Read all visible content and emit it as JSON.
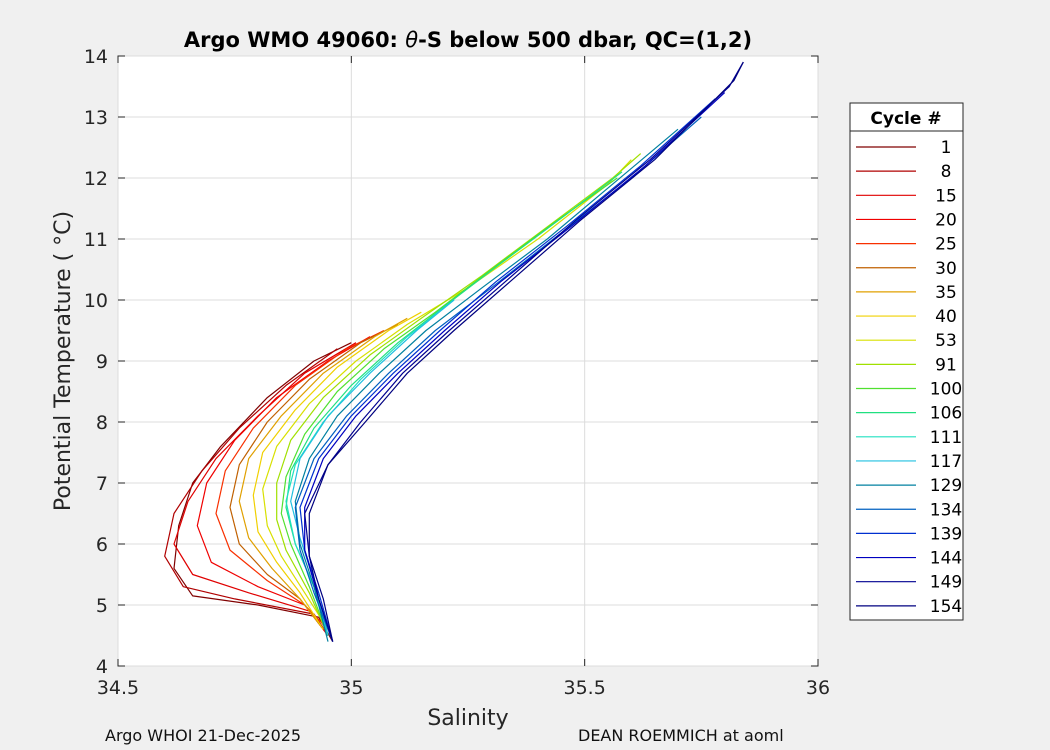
{
  "chart_data": {
    "type": "line",
    "title_prefix": "Argo WMO 49060: ",
    "title_symbol": "θ",
    "title_suffix": "-S below 500 dbar,  QC=(1,2)",
    "xlabel": "Salinity",
    "ylabel": "Potential Temperature ( °C)",
    "xlim": [
      34.5,
      36
    ],
    "ylim": [
      4,
      14
    ],
    "xticks": [
      34.5,
      35,
      35.5,
      36
    ],
    "xtick_labels": [
      "34.5",
      "35",
      "35.5",
      "36"
    ],
    "yticks": [
      4,
      5,
      6,
      7,
      8,
      9,
      10,
      11,
      12,
      13,
      14
    ],
    "ytick_labels": [
      "4",
      "5",
      "6",
      "7",
      "8",
      "9",
      "10",
      "11",
      "12",
      "13",
      "14"
    ],
    "grid": true,
    "legend": {
      "title": "Cycle #",
      "placement": "right-outside",
      "entries": [
        {
          "label": "1",
          "color": "#800000"
        },
        {
          "label": "8",
          "color": "#b00000"
        },
        {
          "label": "15",
          "color": "#e00000"
        },
        {
          "label": "20",
          "color": "#f00000"
        },
        {
          "label": "25",
          "color": "#f83000"
        },
        {
          "label": "30",
          "color": "#c06000"
        },
        {
          "label": "35",
          "color": "#e0a000"
        },
        {
          "label": "40",
          "color": "#f0d000"
        },
        {
          "label": "53",
          "color": "#d8e000"
        },
        {
          "label": "91",
          "color": "#a0e000"
        },
        {
          "label": "100",
          "color": "#50e030"
        },
        {
          "label": "106",
          "color": "#20e080"
        },
        {
          "label": "111",
          "color": "#20e0c0"
        },
        {
          "label": "117",
          "color": "#20c0e0"
        },
        {
          "label": "129",
          "color": "#0080a0"
        },
        {
          "label": "134",
          "color": "#0060c0"
        },
        {
          "label": "139",
          "color": "#0030d0"
        },
        {
          "label": "144",
          "color": "#0000c0"
        },
        {
          "label": "149",
          "color": "#000090"
        },
        {
          "label": "154",
          "color": "#000080"
        }
      ]
    },
    "series": [
      {
        "name": "1",
        "color": "#800000",
        "points": [
          [
            34.96,
            4.4
          ],
          [
            34.93,
            4.8
          ],
          [
            34.8,
            5.0
          ],
          [
            34.66,
            5.15
          ],
          [
            34.62,
            5.6
          ],
          [
            34.63,
            6.3
          ],
          [
            34.66,
            7.0
          ],
          [
            34.72,
            7.6
          ],
          [
            34.82,
            8.4
          ],
          [
            34.92,
            9.0
          ],
          [
            35.0,
            9.3
          ]
        ]
      },
      {
        "name": "8",
        "color": "#b00000",
        "points": [
          [
            34.95,
            4.5
          ],
          [
            34.92,
            4.85
          ],
          [
            34.75,
            5.1
          ],
          [
            34.64,
            5.3
          ],
          [
            34.6,
            5.8
          ],
          [
            34.62,
            6.5
          ],
          [
            34.68,
            7.2
          ],
          [
            34.76,
            7.9
          ],
          [
            34.86,
            8.6
          ],
          [
            34.97,
            9.2
          ]
        ]
      },
      {
        "name": "15",
        "color": "#e00000",
        "points": [
          [
            34.95,
            4.5
          ],
          [
            34.91,
            4.9
          ],
          [
            34.78,
            5.2
          ],
          [
            34.66,
            5.5
          ],
          [
            34.62,
            6.0
          ],
          [
            34.65,
            6.7
          ],
          [
            34.71,
            7.4
          ],
          [
            34.8,
            8.1
          ],
          [
            34.9,
            8.8
          ],
          [
            35.01,
            9.3
          ]
        ]
      },
      {
        "name": "20",
        "color": "#f00000",
        "points": [
          [
            34.95,
            4.5
          ],
          [
            34.9,
            5.0
          ],
          [
            34.8,
            5.3
          ],
          [
            34.7,
            5.7
          ],
          [
            34.67,
            6.3
          ],
          [
            34.69,
            7.0
          ],
          [
            34.75,
            7.7
          ],
          [
            34.84,
            8.4
          ],
          [
            34.95,
            9.0
          ],
          [
            35.04,
            9.4
          ]
        ]
      },
      {
        "name": "25",
        "color": "#f83000",
        "points": [
          [
            34.95,
            4.6
          ],
          [
            34.9,
            5.0
          ],
          [
            34.82,
            5.4
          ],
          [
            34.74,
            5.9
          ],
          [
            34.71,
            6.5
          ],
          [
            34.73,
            7.2
          ],
          [
            34.79,
            7.9
          ],
          [
            34.88,
            8.6
          ],
          [
            34.99,
            9.2
          ],
          [
            35.07,
            9.5
          ]
        ]
      },
      {
        "name": "30",
        "color": "#c06000",
        "points": [
          [
            34.94,
            4.6
          ],
          [
            34.89,
            5.1
          ],
          [
            34.82,
            5.5
          ],
          [
            34.76,
            6.0
          ],
          [
            34.74,
            6.6
          ],
          [
            34.76,
            7.3
          ],
          [
            34.82,
            8.0
          ],
          [
            34.91,
            8.7
          ],
          [
            35.02,
            9.3
          ],
          [
            35.1,
            9.6
          ]
        ]
      },
      {
        "name": "35",
        "color": "#e0a000",
        "points": [
          [
            34.94,
            4.6
          ],
          [
            34.89,
            5.1
          ],
          [
            34.83,
            5.6
          ],
          [
            34.78,
            6.1
          ],
          [
            34.76,
            6.7
          ],
          [
            34.78,
            7.4
          ],
          [
            34.85,
            8.1
          ],
          [
            34.94,
            8.8
          ],
          [
            35.05,
            9.4
          ],
          [
            35.12,
            9.7
          ]
        ]
      },
      {
        "name": "40",
        "color": "#f0d000",
        "points": [
          [
            34.94,
            4.6
          ],
          [
            34.89,
            5.2
          ],
          [
            34.84,
            5.7
          ],
          [
            34.8,
            6.2
          ],
          [
            34.79,
            6.8
          ],
          [
            34.81,
            7.5
          ],
          [
            34.88,
            8.2
          ],
          [
            34.97,
            8.9
          ],
          [
            35.08,
            9.5
          ],
          [
            35.15,
            9.8
          ]
        ]
      },
      {
        "name": "53",
        "color": "#d8e000",
        "points": [
          [
            34.95,
            4.6
          ],
          [
            34.9,
            5.2
          ],
          [
            34.85,
            5.8
          ],
          [
            34.82,
            6.3
          ],
          [
            34.81,
            6.9
          ],
          [
            34.84,
            7.6
          ],
          [
            34.91,
            8.3
          ],
          [
            35.01,
            9.0
          ],
          [
            35.12,
            9.6
          ],
          [
            35.25,
            10.2
          ],
          [
            35.4,
            11.0
          ],
          [
            35.55,
            11.9
          ],
          [
            35.6,
            12.3
          ]
        ]
      },
      {
        "name": "91",
        "color": "#a0e000",
        "points": [
          [
            34.95,
            4.5
          ],
          [
            34.91,
            5.2
          ],
          [
            34.86,
            5.9
          ],
          [
            34.84,
            6.4
          ],
          [
            34.84,
            7.0
          ],
          [
            34.87,
            7.7
          ],
          [
            34.94,
            8.4
          ],
          [
            35.04,
            9.1
          ],
          [
            35.15,
            9.7
          ],
          [
            35.28,
            10.4
          ],
          [
            35.42,
            11.2
          ],
          [
            35.56,
            12.0
          ],
          [
            35.62,
            12.4
          ]
        ]
      },
      {
        "name": "100",
        "color": "#50e030",
        "points": [
          [
            34.95,
            4.5
          ],
          [
            34.91,
            5.3
          ],
          [
            34.87,
            6.0
          ],
          [
            34.85,
            6.5
          ],
          [
            34.86,
            7.1
          ],
          [
            34.9,
            7.8
          ],
          [
            34.97,
            8.5
          ],
          [
            35.07,
            9.2
          ],
          [
            35.18,
            9.8
          ],
          [
            35.3,
            10.5
          ],
          [
            35.44,
            11.3
          ],
          [
            35.57,
            12.0
          ]
        ]
      },
      {
        "name": "106",
        "color": "#20e080",
        "points": [
          [
            34.95,
            4.5
          ],
          [
            34.92,
            5.3
          ],
          [
            34.88,
            6.0
          ],
          [
            34.86,
            6.6
          ],
          [
            34.87,
            7.2
          ],
          [
            34.92,
            7.9
          ],
          [
            35.0,
            8.6
          ],
          [
            35.1,
            9.3
          ],
          [
            35.2,
            9.9
          ],
          [
            35.32,
            10.6
          ],
          [
            35.46,
            11.4
          ],
          [
            35.58,
            12.1
          ]
        ]
      },
      {
        "name": "111",
        "color": "#20e0c0",
        "points": [
          [
            34.95,
            4.5
          ],
          [
            34.92,
            5.3
          ],
          [
            34.88,
            6.0
          ],
          [
            34.86,
            6.7
          ],
          [
            34.88,
            7.3
          ],
          [
            34.94,
            8.0
          ],
          [
            35.02,
            8.7
          ],
          [
            35.12,
            9.4
          ],
          [
            35.22,
            10.0
          ]
        ]
      },
      {
        "name": "117",
        "color": "#20c0e0",
        "points": [
          [
            34.95,
            4.5
          ],
          [
            34.92,
            5.4
          ],
          [
            34.89,
            6.1
          ],
          [
            34.87,
            6.7
          ],
          [
            34.89,
            7.4
          ],
          [
            34.95,
            8.1
          ],
          [
            35.04,
            8.8
          ],
          [
            35.14,
            9.5
          ],
          [
            35.22,
            10.0
          ]
        ]
      },
      {
        "name": "129",
        "color": "#0080a0",
        "points": [
          [
            34.95,
            4.4
          ],
          [
            34.92,
            5.3
          ],
          [
            34.89,
            6.0
          ],
          [
            34.88,
            6.7
          ],
          [
            34.91,
            7.4
          ],
          [
            34.97,
            8.1
          ],
          [
            35.06,
            8.8
          ],
          [
            35.16,
            9.5
          ],
          [
            35.28,
            10.2
          ],
          [
            35.42,
            11.0
          ],
          [
            35.56,
            11.9
          ],
          [
            35.7,
            12.8
          ]
        ]
      },
      {
        "name": "134",
        "color": "#0060c0",
        "points": [
          [
            34.96,
            4.4
          ],
          [
            34.92,
            5.2
          ],
          [
            34.89,
            5.9
          ],
          [
            34.88,
            6.6
          ],
          [
            34.92,
            7.4
          ],
          [
            34.99,
            8.1
          ],
          [
            35.08,
            8.8
          ],
          [
            35.18,
            9.5
          ],
          [
            35.3,
            10.2
          ],
          [
            35.45,
            11.1
          ],
          [
            35.6,
            12.0
          ],
          [
            35.75,
            13.0
          ]
        ]
      },
      {
        "name": "139",
        "color": "#0030d0",
        "points": [
          [
            34.96,
            4.4
          ],
          [
            34.93,
            5.2
          ],
          [
            34.9,
            5.9
          ],
          [
            34.89,
            6.6
          ],
          [
            34.93,
            7.4
          ],
          [
            35.0,
            8.1
          ],
          [
            35.09,
            8.8
          ],
          [
            35.19,
            9.5
          ],
          [
            35.31,
            10.3
          ],
          [
            35.46,
            11.2
          ],
          [
            35.62,
            12.2
          ],
          [
            35.78,
            13.3
          ]
        ]
      },
      {
        "name": "144",
        "color": "#0000c0",
        "points": [
          [
            34.96,
            4.4
          ],
          [
            34.93,
            5.1
          ],
          [
            34.9,
            5.9
          ],
          [
            34.9,
            6.6
          ],
          [
            34.94,
            7.4
          ],
          [
            35.01,
            8.1
          ],
          [
            35.1,
            8.8
          ],
          [
            35.2,
            9.5
          ],
          [
            35.32,
            10.3
          ],
          [
            35.47,
            11.2
          ],
          [
            35.63,
            12.2
          ],
          [
            35.8,
            13.4
          ]
        ]
      },
      {
        "name": "149",
        "color": "#000090",
        "points": [
          [
            34.96,
            4.4
          ],
          [
            34.93,
            5.1
          ],
          [
            34.91,
            5.8
          ],
          [
            34.9,
            6.5
          ],
          [
            34.95,
            7.3
          ],
          [
            35.02,
            8.0
          ],
          [
            35.11,
            8.8
          ],
          [
            35.21,
            9.5
          ],
          [
            35.33,
            10.3
          ],
          [
            35.48,
            11.3
          ],
          [
            35.64,
            12.3
          ],
          [
            35.81,
            13.5
          ],
          [
            35.84,
            13.9
          ]
        ]
      },
      {
        "name": "154",
        "color": "#000080",
        "points": [
          [
            34.96,
            4.4
          ],
          [
            34.94,
            5.1
          ],
          [
            34.91,
            5.8
          ],
          [
            34.91,
            6.5
          ],
          [
            34.95,
            7.3
          ],
          [
            35.03,
            8.0
          ],
          [
            35.12,
            8.8
          ],
          [
            35.22,
            9.5
          ],
          [
            35.34,
            10.3
          ],
          [
            35.49,
            11.3
          ],
          [
            35.65,
            12.3
          ],
          [
            35.82,
            13.6
          ],
          [
            35.84,
            13.9
          ]
        ]
      }
    ]
  },
  "footer": {
    "left": "Argo WHOI 21-Dec-2025",
    "right": "DEAN ROEMMICH at aoml"
  }
}
